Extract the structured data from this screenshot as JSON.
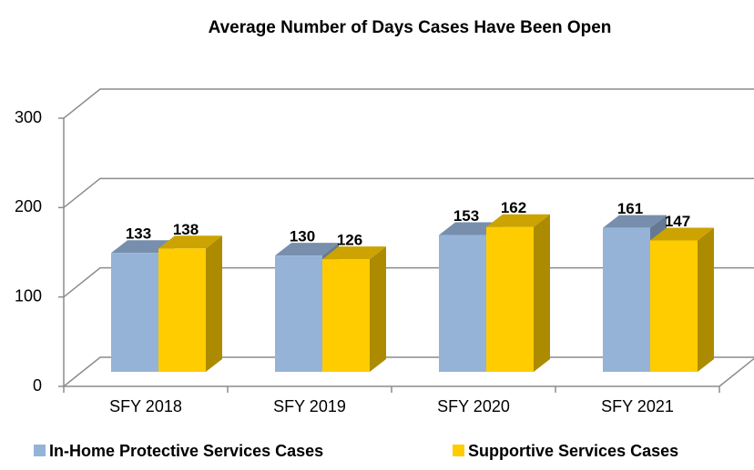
{
  "chart_data": {
    "type": "bar",
    "title": "Average Number of Days Cases Have Been Open",
    "categories": [
      "SFY 2018",
      "SFY 2019",
      "SFY 2020",
      "SFY 2021"
    ],
    "series": [
      {
        "name": "In-Home Protective Services Cases",
        "color": "#95b3d7",
        "values": [
          133,
          130,
          153,
          161
        ]
      },
      {
        "name": "Supportive Services Cases",
        "color": "#ffcc00",
        "values": [
          138,
          126,
          162,
          147
        ]
      }
    ],
    "ylim": [
      0,
      300
    ],
    "yticks": [
      0,
      100,
      200,
      300
    ],
    "grid": true,
    "legend": "bottom"
  }
}
